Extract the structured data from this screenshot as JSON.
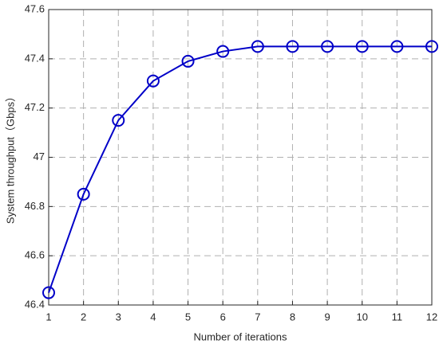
{
  "chart_data": {
    "type": "line",
    "x_label": "Number of iterations",
    "y_label": "System throughput（Gbps）",
    "x": [
      1,
      2,
      3,
      4,
      5,
      6,
      7,
      8,
      9,
      10,
      11,
      12
    ],
    "series": [
      {
        "color": "#0000c8",
        "values": [
          46.45,
          46.85,
          47.15,
          47.31,
          47.39,
          47.43,
          47.45,
          47.45,
          47.45,
          47.45,
          47.45,
          47.45
        ]
      }
    ],
    "xlim": [
      1,
      12
    ],
    "xticks": [
      1,
      2,
      3,
      4,
      5,
      6,
      7,
      8,
      9,
      10,
      11,
      12
    ],
    "ylim": [
      46.4,
      47.6
    ],
    "yticks": [
      46.4,
      46.6,
      46.8,
      47,
      47.2,
      47.4,
      47.6
    ],
    "grid": true,
    "marker": "circle"
  }
}
